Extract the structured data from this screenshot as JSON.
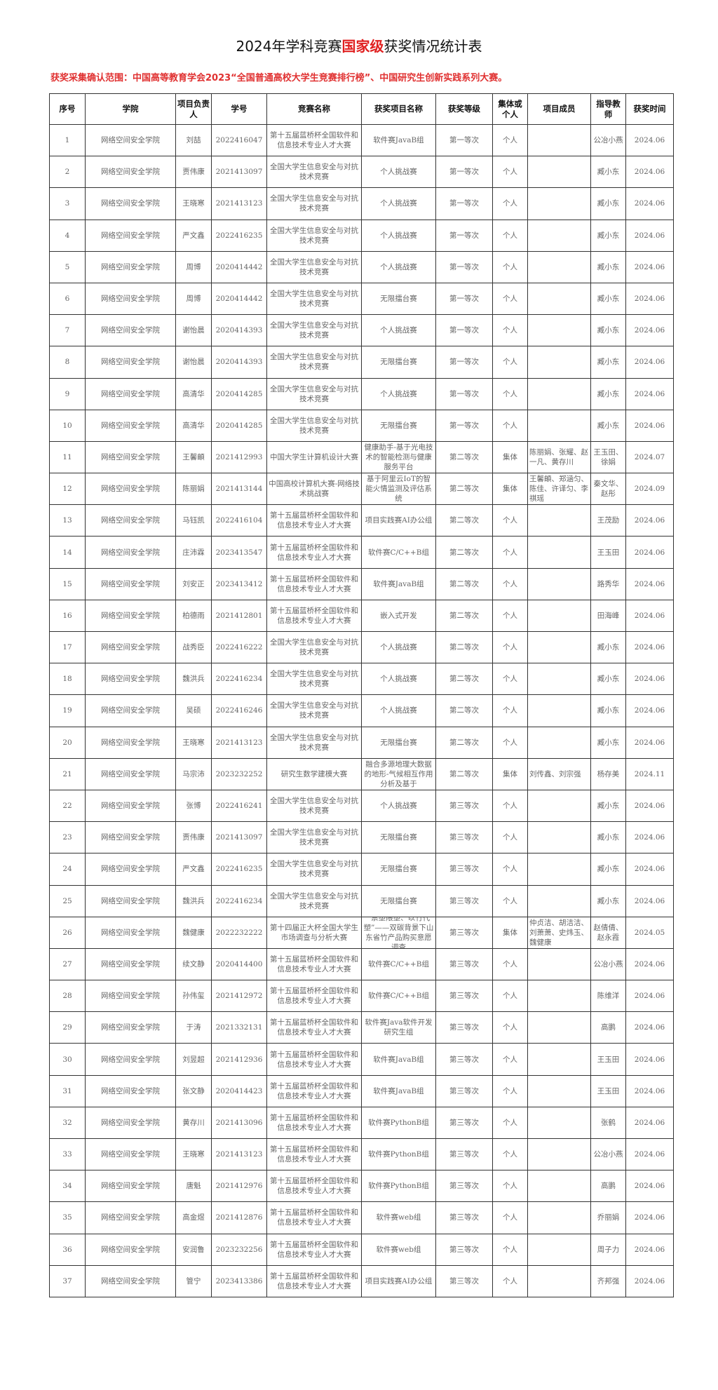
{
  "title": {
    "prefix": "2024年学科竞赛",
    "highlight": "国家级",
    "suffix": "获奖情况统计表"
  },
  "scope": "获奖采集确认范围：中国高等教育学会2023“全国普通高校大学生竞赛排行榜”、中国研究生创新实践系列大赛。",
  "colors": {
    "title_highlight": "#e02020",
    "scope_text": "#e03030"
  },
  "columns": [
    "序号",
    "学院",
    "项目负责人",
    "学号",
    "竞赛名称",
    "获奖项目名称",
    "获奖等级",
    "集体或个人",
    "项目成员",
    "指导教师",
    "获奖时间"
  ],
  "rows": [
    [
      "1",
      "网络空间安全学院",
      "刘喆",
      "2022416047",
      "第十五届蓝桥杯全国软件和信息技术专业人才大赛",
      "软件赛JavaB组",
      "第一等次",
      "个人",
      "",
      "公冶小燕",
      "2024.06"
    ],
    [
      "2",
      "网络空间安全学院",
      "贾伟康",
      "2021413097",
      "全国大学生信息安全与对抗技术竞赛",
      "个人挑战赛",
      "第一等次",
      "个人",
      "",
      "臧小东",
      "2024.06"
    ],
    [
      "3",
      "网络空间安全学院",
      "王晓寒",
      "2021413123",
      "全国大学生信息安全与对抗技术竞赛",
      "个人挑战赛",
      "第一等次",
      "个人",
      "",
      "臧小东",
      "2024.06"
    ],
    [
      "4",
      "网络空间安全学院",
      "严文鑫",
      "2022416235",
      "全国大学生信息安全与对抗技术竞赛",
      "个人挑战赛",
      "第一等次",
      "个人",
      "",
      "臧小东",
      "2024.06"
    ],
    [
      "5",
      "网络空间安全学院",
      "周博",
      "2020414442",
      "全国大学生信息安全与对抗技术竞赛",
      "个人挑战赛",
      "第一等次",
      "个人",
      "",
      "臧小东",
      "2024.06"
    ],
    [
      "6",
      "网络空间安全学院",
      "周博",
      "2020414442",
      "全国大学生信息安全与对抗技术竞赛",
      "无限擂台赛",
      "第一等次",
      "个人",
      "",
      "臧小东",
      "2024.06"
    ],
    [
      "7",
      "网络空间安全学院",
      "谢怡晨",
      "2020414393",
      "全国大学生信息安全与对抗技术竞赛",
      "个人挑战赛",
      "第一等次",
      "个人",
      "",
      "臧小东",
      "2024.06"
    ],
    [
      "8",
      "网络空间安全学院",
      "谢怡晨",
      "2020414393",
      "全国大学生信息安全与对抗技术竞赛",
      "无限擂台赛",
      "第一等次",
      "个人",
      "",
      "臧小东",
      "2024.06"
    ],
    [
      "9",
      "网络空间安全学院",
      "高清华",
      "2020414285",
      "全国大学生信息安全与对抗技术竞赛",
      "个人挑战赛",
      "第一等次",
      "个人",
      "",
      "臧小东",
      "2024.06"
    ],
    [
      "10",
      "网络空间安全学院",
      "高清华",
      "2020414285",
      "全国大学生信息安全与对抗技术竞赛",
      "无限擂台赛",
      "第一等次",
      "个人",
      "",
      "臧小东",
      "2024.06"
    ],
    [
      "11",
      "网络空间安全学院",
      "王馨頔",
      "2021412993",
      "中国大学生计算机设计大赛",
      "健康助手-基于光电技术的智能检测与健康服务平台",
      "第二等次",
      "集体",
      "陈丽娟、张耀、赵一凡、黄存川",
      "王玉田、徐娟",
      "2024.07"
    ],
    [
      "12",
      "网络空间安全学院",
      "陈丽娟",
      "2021413144",
      "中国高校计算机大赛-网络技术挑战赛",
      "基于阿里云IoT的智能火情监测及评估系统",
      "第二等次",
      "集体",
      "王馨頔、郑涵匀、陈佳、许译匀、李祺瑶",
      "秦文华、赵彤",
      "2024.09"
    ],
    [
      "13",
      "网络空间安全学院",
      "马钰凯",
      "2022416104",
      "第十五届蓝桥杯全国软件和信息技术专业人才大赛",
      "项目实践赛AI办公组",
      "第二等次",
      "个人",
      "",
      "王茂励",
      "2024.06"
    ],
    [
      "14",
      "网络空间安全学院",
      "庄沛霖",
      "2023413547",
      "第十五届蓝桥杯全国软件和信息技术专业人才大赛",
      "软件赛C/C++B组",
      "第二等次",
      "个人",
      "",
      "王玉田",
      "2024.06"
    ],
    [
      "15",
      "网络空间安全学院",
      "刘安正",
      "2023413412",
      "第十五届蓝桥杯全国软件和信息技术专业人才大赛",
      "软件赛JavaB组",
      "第二等次",
      "个人",
      "",
      "路秀华",
      "2024.06"
    ],
    [
      "16",
      "网络空间安全学院",
      "柏德雨",
      "2021412801",
      "第十五届蓝桥杯全国软件和信息技术专业人才大赛",
      "嵌入式开发",
      "第二等次",
      "个人",
      "",
      "田海峰",
      "2024.06"
    ],
    [
      "17",
      "网络空间安全学院",
      "战秀臣",
      "2022416222",
      "全国大学生信息安全与对抗技术竞赛",
      "个人挑战赛",
      "第二等次",
      "个人",
      "",
      "臧小东",
      "2024.06"
    ],
    [
      "18",
      "网络空间安全学院",
      "魏洪兵",
      "2022416234",
      "全国大学生信息安全与对抗技术竞赛",
      "个人挑战赛",
      "第二等次",
      "个人",
      "",
      "臧小东",
      "2024.06"
    ],
    [
      "19",
      "网络空间安全学院",
      "吴硕",
      "2022416246",
      "全国大学生信息安全与对抗技术竞赛",
      "个人挑战赛",
      "第二等次",
      "个人",
      "",
      "臧小东",
      "2024.06"
    ],
    [
      "20",
      "网络空间安全学院",
      "王晓寒",
      "2021413123",
      "全国大学生信息安全与对抗技术竞赛",
      "无限擂台赛",
      "第二等次",
      "个人",
      "",
      "臧小东",
      "2024.06"
    ],
    [
      "21",
      "网络空间安全学院",
      "马宗沛",
      "2023232252",
      "研究生数学建模大赛",
      "融合多源地理大数据的地形-气候相互作用分析及基于",
      "第二等次",
      "集体",
      "刘传鑫、刘宗强",
      "杨存美",
      "2024.11"
    ],
    [
      "22",
      "网络空间安全学院",
      "张博",
      "2022416241",
      "全国大学生信息安全与对抗技术竞赛",
      "个人挑战赛",
      "第三等次",
      "个人",
      "",
      "臧小东",
      "2024.06"
    ],
    [
      "23",
      "网络空间安全学院",
      "贾伟康",
      "2021413097",
      "全国大学生信息安全与对抗技术竞赛",
      "无限擂台赛",
      "第三等次",
      "个人",
      "",
      "臧小东",
      "2024.06"
    ],
    [
      "24",
      "网络空间安全学院",
      "严文鑫",
      "2022416235",
      "全国大学生信息安全与对抗技术竞赛",
      "无限擂台赛",
      "第三等次",
      "个人",
      "",
      "臧小东",
      "2024.06"
    ],
    [
      "25",
      "网络空间安全学院",
      "魏洪兵",
      "2022416234",
      "全国大学生信息安全与对抗技术竞赛",
      "无限擂台赛",
      "第三等次",
      "个人",
      "",
      "臧小东",
      "2024.06"
    ],
    [
      "26",
      "网络空间安全学院",
      "魏健康",
      "2022232222",
      "第十四届正大杯全国大学生市场调查与分析大赛",
      "“禁塑限塑、以竹代塑”——双碳背景下山东省竹产品购买意愿调查",
      "第三等次",
      "集体",
      "仲贞洁、胡洁洁、刘萧萧、史炜玉、魏健康",
      "赵倩倩、赵永霞",
      "2024.05"
    ],
    [
      "27",
      "网络空间安全学院",
      "续文静",
      "2020414400",
      "第十五届蓝桥杯全国软件和信息技术专业人才大赛",
      "软件赛C/C++B组",
      "第三等次",
      "个人",
      "",
      "公冶小燕",
      "2024.06"
    ],
    [
      "28",
      "网络空间安全学院",
      "孙伟玺",
      "2021412972",
      "第十五届蓝桥杯全国软件和信息技术专业人才大赛",
      "软件赛C/C++B组",
      "第三等次",
      "个人",
      "",
      "陈维洋",
      "2024.06"
    ],
    [
      "29",
      "网络空间安全学院",
      "于涛",
      "2021332131",
      "第十五届蓝桥杯全国软件和信息技术专业人才大赛",
      "软件赛Java软件开发研究生组",
      "第三等次",
      "个人",
      "",
      "高鹏",
      "2024.06"
    ],
    [
      "30",
      "网络空间安全学院",
      "刘昱超",
      "2021412936",
      "第十五届蓝桥杯全国软件和信息技术专业人才大赛",
      "软件赛JavaB组",
      "第三等次",
      "个人",
      "",
      "王玉田",
      "2024.06"
    ],
    [
      "31",
      "网络空间安全学院",
      "张文静",
      "2020414423",
      "第十五届蓝桥杯全国软件和信息技术专业人才大赛",
      "软件赛JavaB组",
      "第三等次",
      "个人",
      "",
      "王玉田",
      "2024.06"
    ],
    [
      "32",
      "网络空间安全学院",
      "黄存川",
      "2021413096",
      "第十五届蓝桥杯全国软件和信息技术专业人才大赛",
      "软件赛PythonB组",
      "第三等次",
      "个人",
      "",
      "张鹤",
      "2024.06"
    ],
    [
      "33",
      "网络空间安全学院",
      "王晓寒",
      "2021413123",
      "第十五届蓝桥杯全国软件和信息技术专业人才大赛",
      "软件赛PythonB组",
      "第三等次",
      "个人",
      "",
      "公冶小燕",
      "2024.06"
    ],
    [
      "34",
      "网络空间安全学院",
      "唐魁",
      "2021412976",
      "第十五届蓝桥杯全国软件和信息技术专业人才大赛",
      "软件赛PythonB组",
      "第三等次",
      "个人",
      "",
      "高鹏",
      "2024.06"
    ],
    [
      "35",
      "网络空间安全学院",
      "高金煜",
      "2021412876",
      "第十五届蓝桥杯全国软件和信息技术专业人才大赛",
      "软件赛web组",
      "第三等次",
      "个人",
      "",
      "乔丽娟",
      "2024.06"
    ],
    [
      "36",
      "网络空间安全学院",
      "安润鲁",
      "2023232256",
      "第十五届蓝桥杯全国软件和信息技术专业人才大赛",
      "软件赛web组",
      "第三等次",
      "个人",
      "",
      "周子力",
      "2024.06"
    ],
    [
      "37",
      "网络空间安全学院",
      "管宁",
      "2023413386",
      "第十五届蓝桥杯全国软件和信息技术专业人才大赛",
      "项目实践赛AI办公组",
      "第三等次",
      "个人",
      "",
      "齐邦强",
      "2024.06"
    ]
  ]
}
